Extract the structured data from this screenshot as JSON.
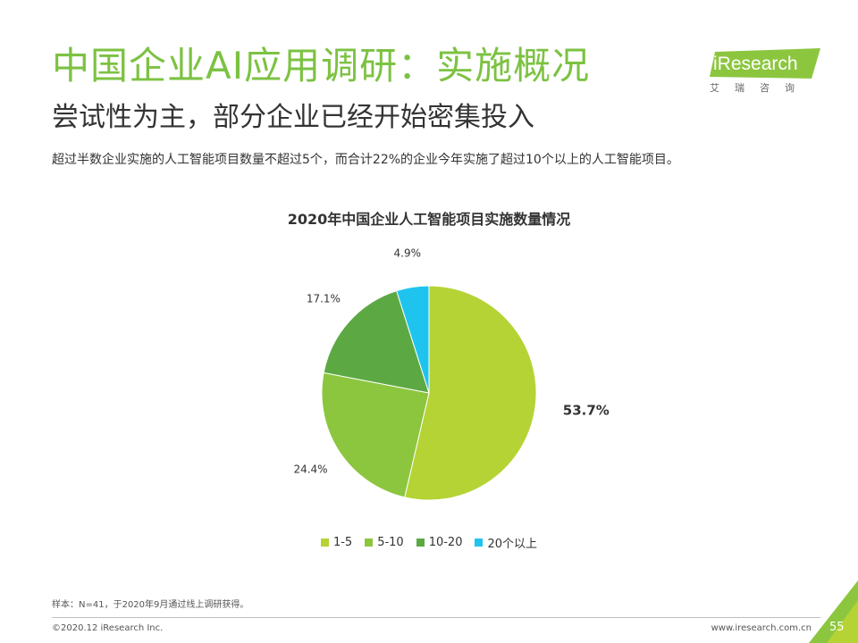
{
  "header": {
    "title": "中国企业AI应用调研：实施概况",
    "subtitle": "尝试性为主，部分企业已经开始密集投入",
    "summary": "超过半数企业实施的人工智能项目数量不超过5个，而合计22%的企业今年实施了超过10个以上的人工智能项目。"
  },
  "logo": {
    "name": "iResearch",
    "cn": "艾瑞咨询"
  },
  "chart_data": {
    "type": "pie",
    "title": "2020年中国企业人工智能项目实施数量情况",
    "categories": [
      "1-5",
      "5-10",
      "10-20",
      "20个以上"
    ],
    "values": [
      53.7,
      24.4,
      17.1,
      4.9
    ],
    "data_labels": [
      "53.7%",
      "24.4%",
      "17.1%",
      "4.9%"
    ],
    "colors": [
      "#b5d334",
      "#8cc63f",
      "#5ca943",
      "#1fc4ee"
    ],
    "legend_position": "bottom",
    "start_angle": "12 o'clock, clockwise"
  },
  "footer": {
    "note": "样本：N=41，于2020年9月通过线上调研获得。",
    "copyright": "©2020.12 iResearch Inc.",
    "website": "www.iresearch.com.cn",
    "page": "55"
  },
  "colors": {
    "brand_green": "#7cc242"
  }
}
